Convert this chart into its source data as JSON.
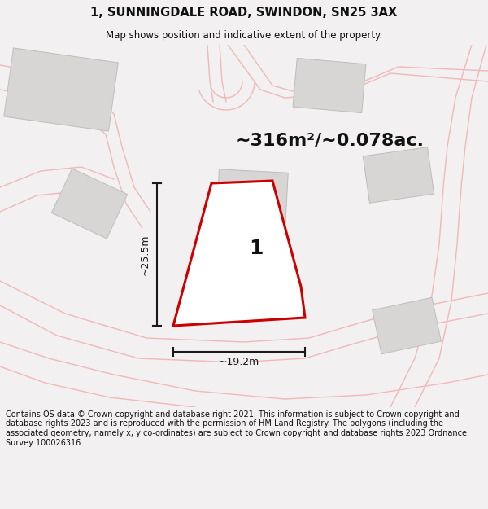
{
  "title_line1": "1, SUNNINGDALE ROAD, SWINDON, SN25 3AX",
  "title_line2": "Map shows position and indicative extent of the property.",
  "area_text": "~316m²/~0.078ac.",
  "plot_label": "1",
  "dim_vertical": "~25.5m",
  "dim_horizontal": "~19.2m",
  "footer_text": "Contains OS data © Crown copyright and database right 2021. This information is subject to Crown copyright and database rights 2023 and is reproduced with the permission of HM Land Registry. The polygons (including the associated geometry, namely x, y co-ordinates) are subject to Crown copyright and database rights 2023 Ordnance Survey 100026316.",
  "bg_color": "#f2f0f0",
  "map_bg": "#f5f3f3",
  "road_color": "#f0b8b8",
  "building_color": "#d8d5d5",
  "plot_outline_color": "#cc0000",
  "plot_fill_color": "#ffffff",
  "dim_line_color": "#1a1a1a",
  "text_color": "#111111",
  "title_fontsize": 10.5,
  "subtitle_fontsize": 8.5,
  "area_fontsize": 16,
  "label_fontsize": 18,
  "dim_fontsize": 9,
  "footer_fontsize": 7
}
